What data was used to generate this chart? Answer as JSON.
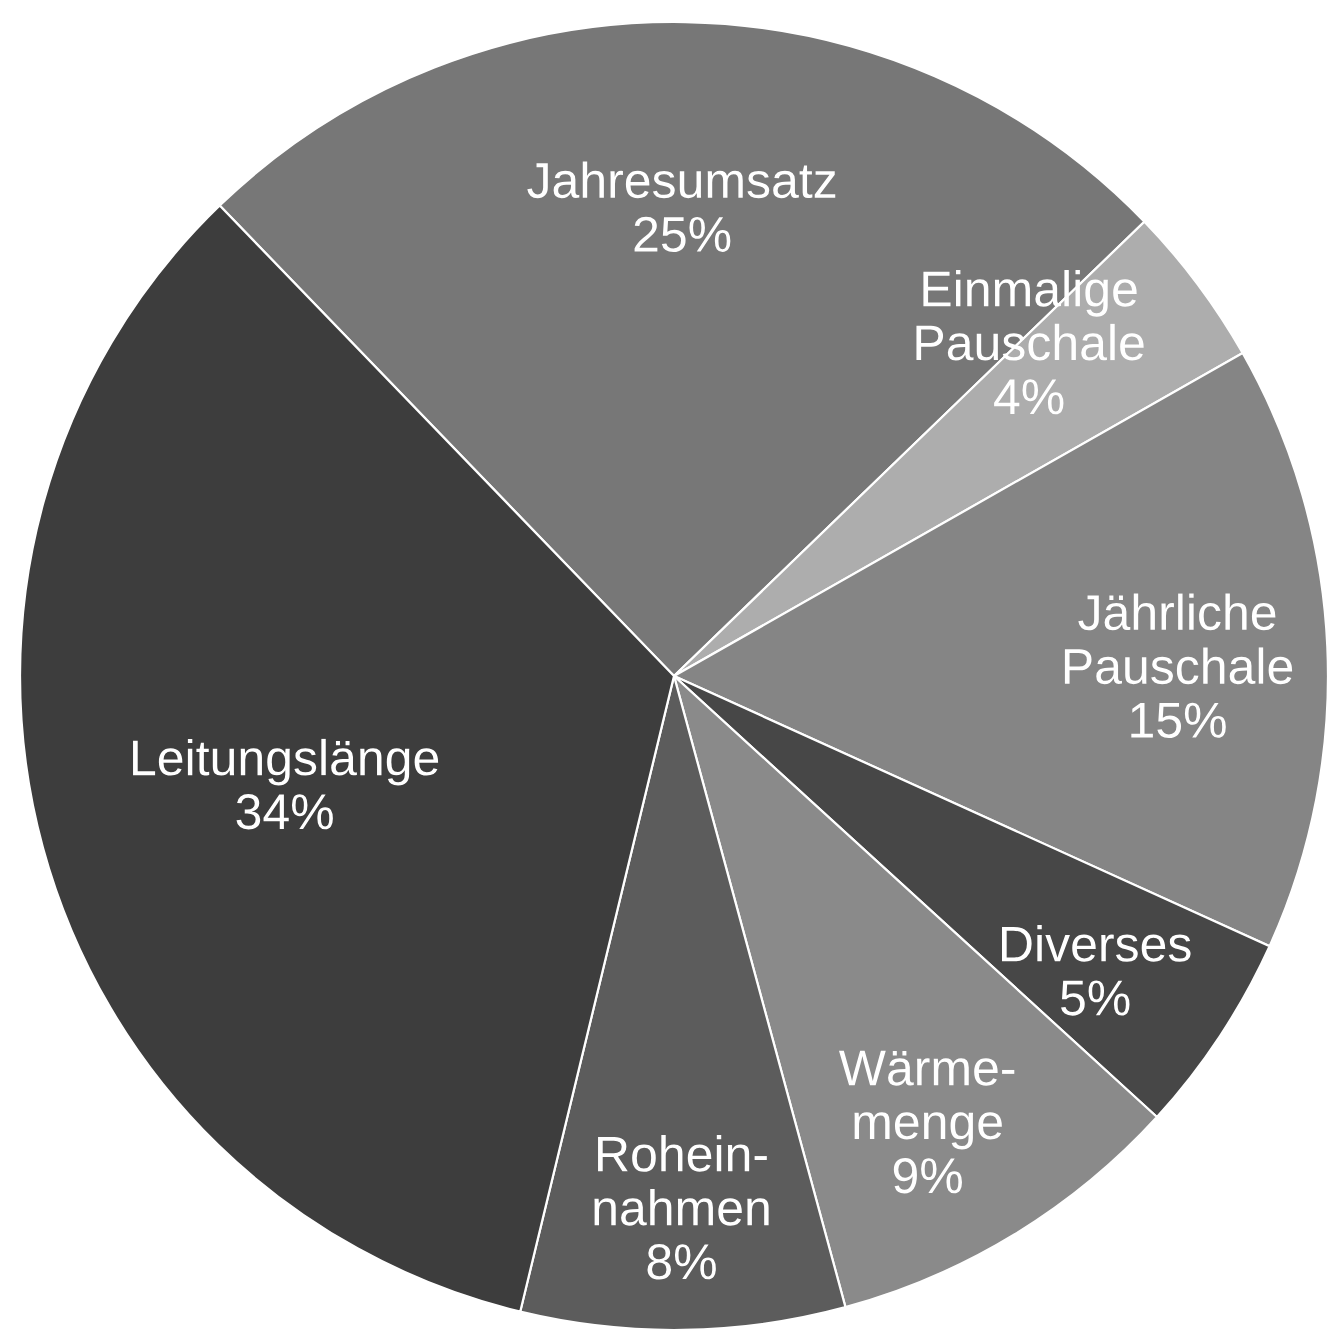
{
  "chart_data": {
    "type": "pie",
    "categories": [
      "Jahresumsatz",
      "Einmalige\nPauschale",
      "Jährliche\nPauschale",
      "Diverses",
      "Wärme-\nmenge",
      "Rohein-\nnahmen",
      "Leitungslänge"
    ],
    "values": [
      25,
      4,
      15,
      5,
      9,
      8,
      34
    ],
    "value_labels": [
      "25%",
      "4%",
      "15%",
      "5%",
      "9%",
      "8%",
      "34%"
    ],
    "colors": [
      "#777777",
      "#adadad",
      "#858585",
      "#474747",
      "#8a8a8a",
      "#5c5c5c",
      "#3d3d3d"
    ]
  }
}
